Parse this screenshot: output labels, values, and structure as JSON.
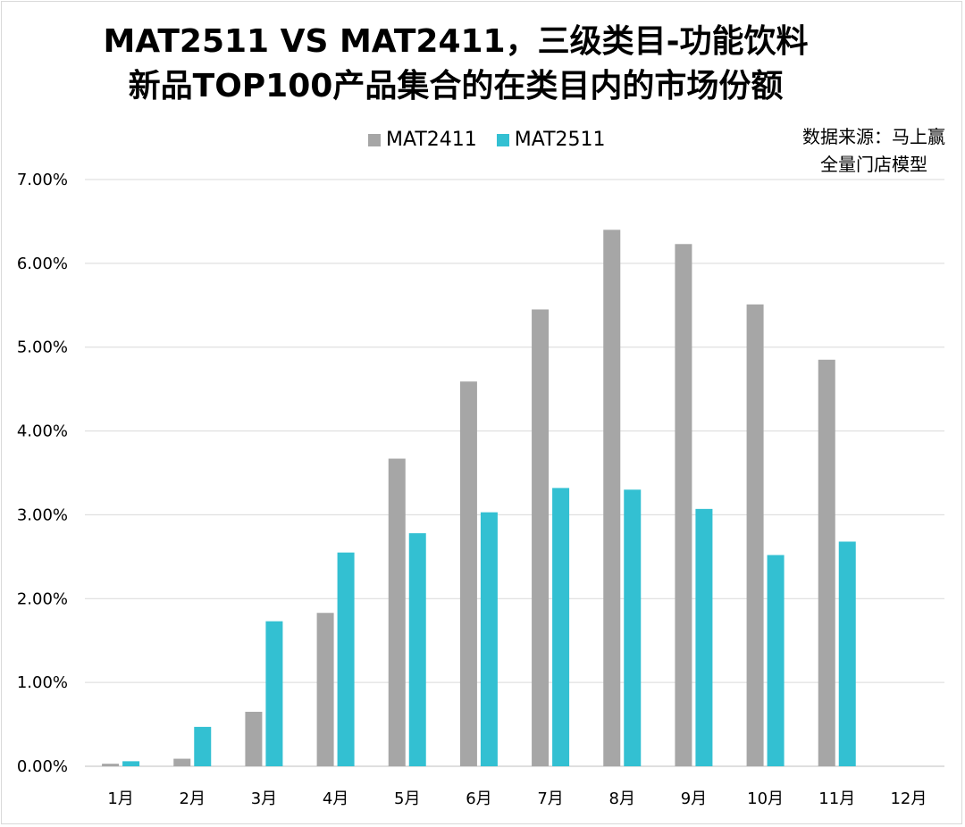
{
  "chart_data": {
    "type": "bar",
    "title_line1": "MAT2511 VS MAT2411，三级类目-功能饮料",
    "title_line2": "新品TOP100产品集合的在类目内的市场份额",
    "source_line1": "数据来源：马上赢",
    "source_line2": "全量门店模型",
    "categories": [
      "1月",
      "2月",
      "3月",
      "4月",
      "5月",
      "6月",
      "7月",
      "8月",
      "9月",
      "10月",
      "11月",
      "12月"
    ],
    "series": [
      {
        "name": "MAT2411",
        "color": "#a6a6a6",
        "values": [
          0.03,
          0.09,
          0.65,
          1.83,
          3.67,
          4.59,
          5.45,
          6.4,
          6.23,
          5.51,
          4.85,
          null
        ]
      },
      {
        "name": "MAT2511",
        "color": "#33c0d2",
        "values": [
          0.06,
          0.47,
          1.73,
          2.55,
          2.78,
          3.03,
          3.32,
          3.3,
          3.07,
          2.52,
          2.68,
          null
        ]
      }
    ],
    "ylim": [
      0,
      7
    ],
    "yticks": [
      "0.00%",
      "1.00%",
      "2.00%",
      "3.00%",
      "4.00%",
      "5.00%",
      "6.00%",
      "7.00%"
    ],
    "y_unit": "%",
    "grid": true,
    "legend_position": "top"
  }
}
